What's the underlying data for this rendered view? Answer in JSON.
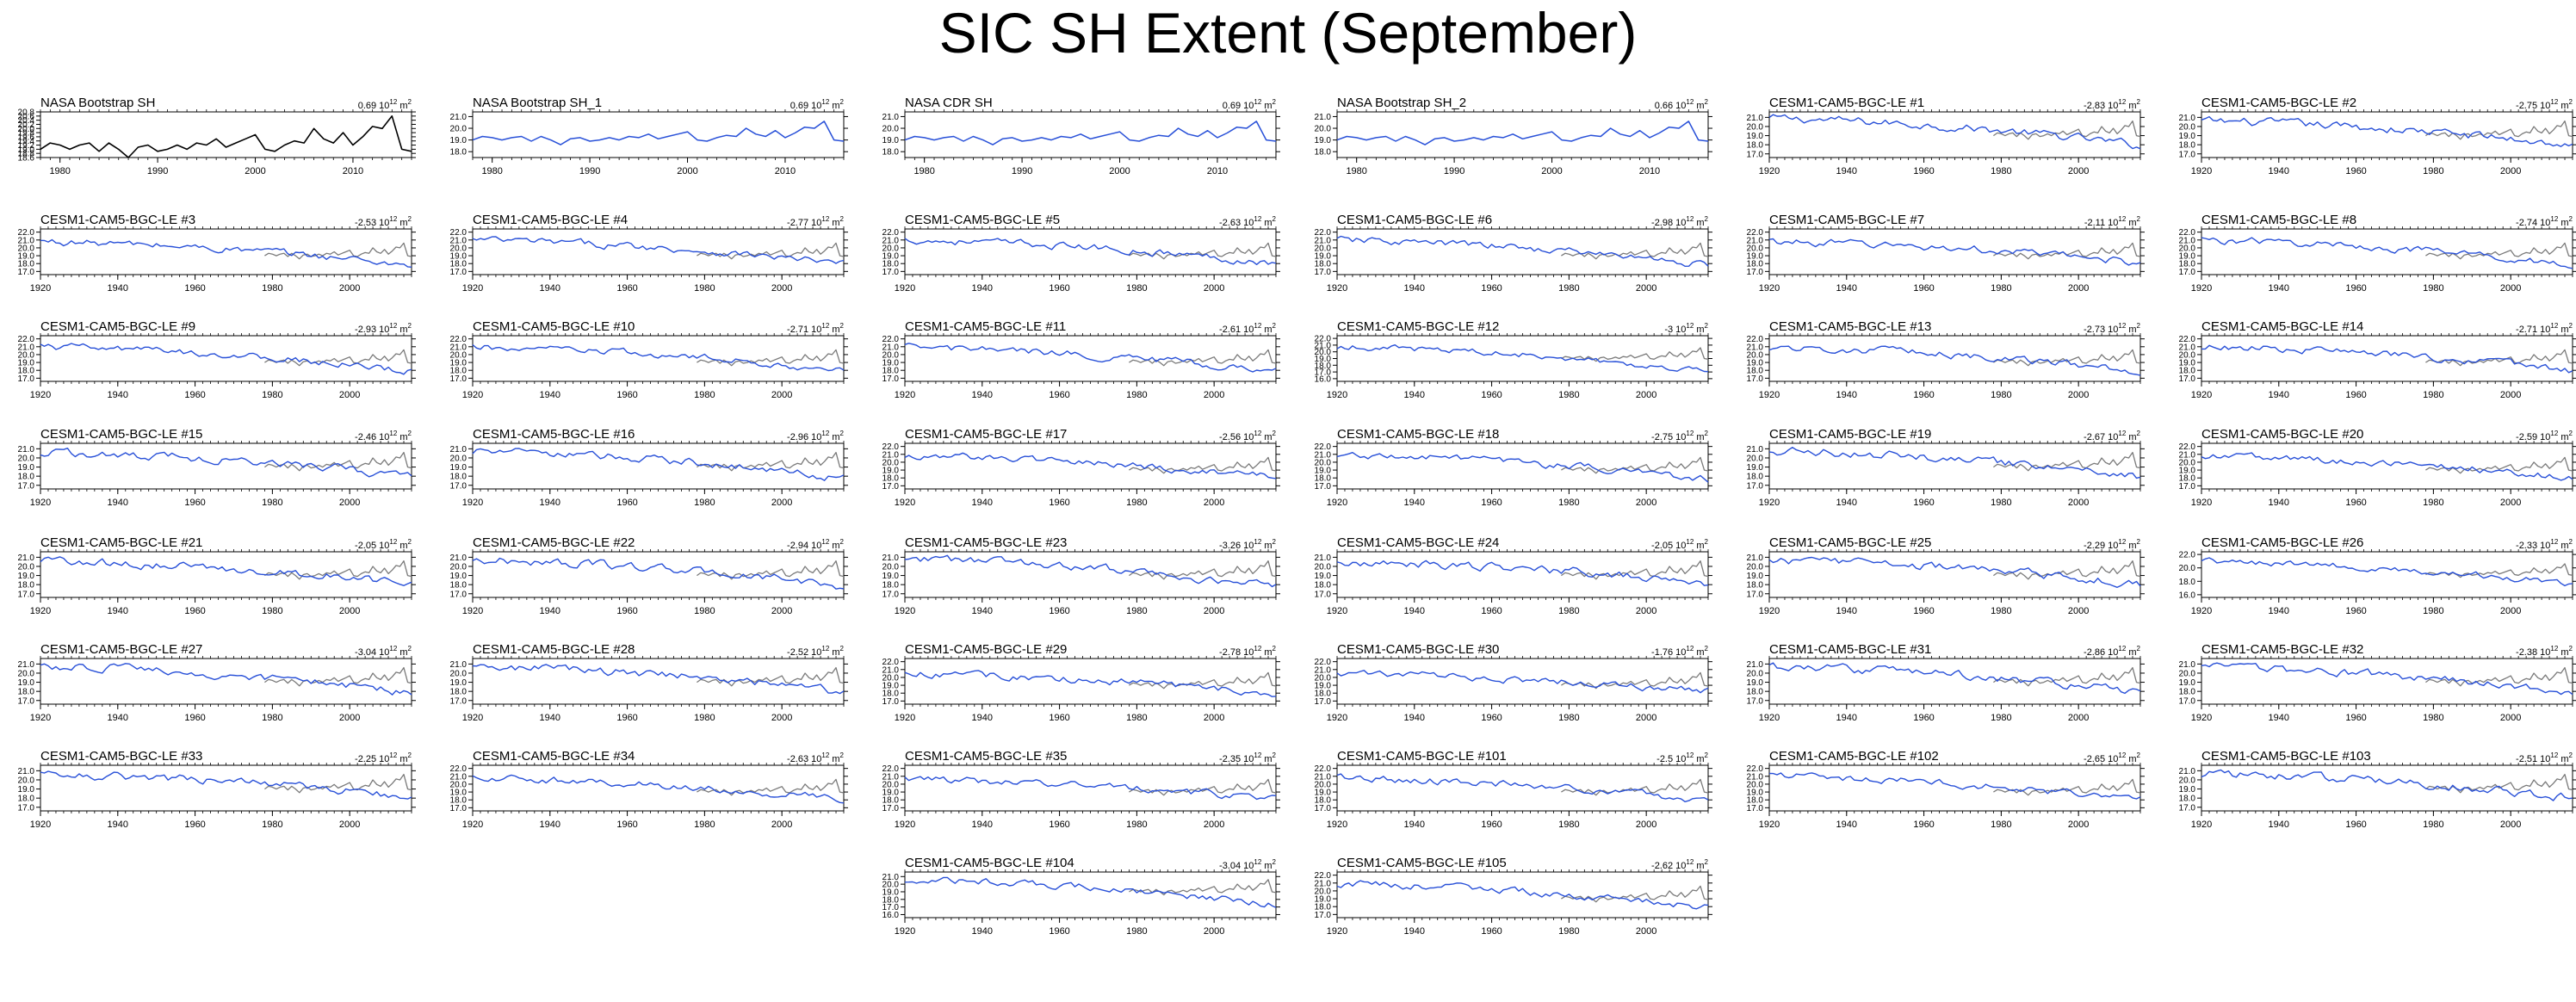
{
  "title": "SIC SH Extent (September)",
  "colors": {
    "obs": "#000000",
    "model": "#2850d8",
    "obs_overlay": "#7a7a7a"
  },
  "chart_data": {
    "type": "line",
    "units_label": "10",
    "units_exp": "12",
    "units_suffix": "m",
    "units_suffix_exp": "2",
    "observations": [
      {
        "name": "NASA Bootstrap SH",
        "trend": "0.69",
        "x_range": [
          1978,
          2016
        ],
        "xticks": [
          "1980",
          "1990",
          "2000",
          "2010"
        ],
        "ylim": [
          18.6,
          20.8
        ],
        "yticks": [
          "18.6",
          "18.8",
          "19.0",
          "19.2",
          "19.4",
          "19.6",
          "19.8",
          "20.0",
          "20.2",
          "20.4",
          "20.6",
          "20.8"
        ],
        "color": "#000000",
        "values": [
          19.0,
          19.3,
          19.2,
          19.0,
          19.2,
          19.3,
          18.9,
          19.3,
          19.0,
          18.6,
          19.1,
          19.2,
          18.9,
          19.0,
          19.2,
          19.0,
          19.3,
          19.2,
          19.5,
          19.1,
          19.3,
          19.5,
          19.7,
          19.0,
          18.9,
          19.2,
          19.4,
          19.3,
          20.0,
          19.5,
          19.3,
          19.8,
          19.2,
          19.6,
          20.1,
          20.0,
          20.6,
          19.0,
          18.9
        ]
      },
      {
        "name": "NASA Bootstrap SH_1",
        "trend": "0.69",
        "x_range": [
          1978,
          2016
        ],
        "xticks": [
          "1980",
          "1990",
          "2000",
          "2010"
        ],
        "ylim": [
          17.5,
          21.4
        ],
        "yticks": [
          "18.0",
          "19.0",
          "20.0",
          "21.0"
        ],
        "color": "#2850d8",
        "values": [
          19.0,
          19.3,
          19.2,
          19.0,
          19.2,
          19.3,
          18.9,
          19.3,
          19.0,
          18.6,
          19.1,
          19.2,
          18.9,
          19.0,
          19.2,
          19.0,
          19.3,
          19.2,
          19.5,
          19.1,
          19.3,
          19.5,
          19.7,
          19.0,
          18.9,
          19.2,
          19.4,
          19.3,
          20.0,
          19.5,
          19.3,
          19.8,
          19.2,
          19.6,
          20.1,
          20.0,
          20.6,
          19.0,
          18.9
        ]
      },
      {
        "name": "NASA CDR SH",
        "trend": "0.69",
        "x_range": [
          1978,
          2016
        ],
        "xticks": [
          "1980",
          "1990",
          "2000",
          "2010"
        ],
        "ylim": [
          17.5,
          21.4
        ],
        "yticks": [
          "18.0",
          "19.0",
          "20.0",
          "21.0"
        ],
        "color": "#2850d8",
        "values": [
          19.0,
          19.3,
          19.2,
          19.0,
          19.2,
          19.3,
          18.9,
          19.3,
          19.0,
          18.6,
          19.1,
          19.2,
          18.9,
          19.0,
          19.2,
          19.0,
          19.3,
          19.2,
          19.5,
          19.1,
          19.3,
          19.5,
          19.7,
          19.0,
          18.9,
          19.2,
          19.4,
          19.3,
          20.0,
          19.5,
          19.3,
          19.8,
          19.2,
          19.6,
          20.1,
          20.0,
          20.6,
          19.0,
          18.9
        ]
      },
      {
        "name": "NASA Bootstrap SH_2",
        "trend": "0.66",
        "x_range": [
          1978,
          2016
        ],
        "xticks": [
          "1980",
          "1990",
          "2000",
          "2010"
        ],
        "ylim": [
          17.5,
          21.4
        ],
        "yticks": [
          "18.0",
          "19.0",
          "20.0",
          "21.0"
        ],
        "color": "#2850d8",
        "values": [
          19.0,
          19.3,
          19.2,
          19.0,
          19.2,
          19.3,
          18.9,
          19.3,
          19.0,
          18.6,
          19.1,
          19.2,
          18.9,
          19.0,
          19.2,
          19.0,
          19.3,
          19.2,
          19.5,
          19.1,
          19.3,
          19.5,
          19.7,
          19.0,
          18.9,
          19.2,
          19.4,
          19.3,
          20.0,
          19.5,
          19.3,
          19.8,
          19.2,
          19.6,
          20.1,
          20.0,
          20.6,
          19.0,
          18.9
        ]
      }
    ],
    "model_x_range": [
      1920,
      2016
    ],
    "model_xticks": [
      "1920",
      "1940",
      "1960",
      "1980",
      "2000"
    ],
    "members": [
      {
        "name": "CESM1-CAM5-BGC-LE #1",
        "trend": "-2.83",
        "ylim": [
          16.6,
          21.6
        ],
        "yticks": [
          "17.0",
          "18.0",
          "19.0",
          "20.0",
          "21.0"
        ],
        "start": 20.9,
        "end": 17.9
      },
      {
        "name": "CESM1-CAM5-BGC-LE #2",
        "trend": "-2.75",
        "ylim": [
          16.6,
          21.6
        ],
        "yticks": [
          "17.0",
          "18.0",
          "19.0",
          "20.0",
          "21.0"
        ],
        "start": 20.6,
        "end": 17.9
      },
      {
        "name": "CESM1-CAM5-BGC-LE #3",
        "trend": "-2.53",
        "ylim": [
          16.6,
          22.4
        ],
        "yticks": [
          "17.0",
          "18.0",
          "19.0",
          "20.0",
          "21.0",
          "22.0"
        ],
        "start": 20.8,
        "end": 17.8
      },
      {
        "name": "CESM1-CAM5-BGC-LE #4",
        "trend": "-2.77",
        "ylim": [
          16.6,
          22.4
        ],
        "yticks": [
          "17.0",
          "18.0",
          "19.0",
          "20.0",
          "21.0",
          "22.0"
        ],
        "start": 21.0,
        "end": 17.9
      },
      {
        "name": "CESM1-CAM5-BGC-LE #5",
        "trend": "-2.63",
        "ylim": [
          16.6,
          22.4
        ],
        "yticks": [
          "17.0",
          "18.0",
          "19.0",
          "20.0",
          "21.0",
          "22.0"
        ],
        "start": 21.0,
        "end": 18.0
      },
      {
        "name": "CESM1-CAM5-BGC-LE #6",
        "trend": "-2.98",
        "ylim": [
          16.6,
          22.4
        ],
        "yticks": [
          "17.0",
          "18.0",
          "19.0",
          "20.0",
          "21.0",
          "22.0"
        ],
        "start": 21.0,
        "end": 17.8
      },
      {
        "name": "CESM1-CAM5-BGC-LE #7",
        "trend": "-2.11",
        "ylim": [
          16.6,
          22.4
        ],
        "yticks": [
          "17.0",
          "18.0",
          "19.0",
          "20.0",
          "21.0",
          "22.0"
        ],
        "start": 20.8,
        "end": 18.1
      },
      {
        "name": "CESM1-CAM5-BGC-LE #8",
        "trend": "-2.74",
        "ylim": [
          16.6,
          22.4
        ],
        "yticks": [
          "17.0",
          "18.0",
          "19.0",
          "20.0",
          "21.0",
          "22.0"
        ],
        "start": 21.0,
        "end": 17.8
      },
      {
        "name": "CESM1-CAM5-BGC-LE #9",
        "trend": "-2.93",
        "ylim": [
          16.6,
          22.4
        ],
        "yticks": [
          "17.0",
          "18.0",
          "19.0",
          "20.0",
          "21.0",
          "22.0"
        ],
        "start": 21.0,
        "end": 17.8
      },
      {
        "name": "CESM1-CAM5-BGC-LE #10",
        "trend": "-2.71",
        "ylim": [
          16.6,
          22.4
        ],
        "yticks": [
          "17.0",
          "18.0",
          "19.0",
          "20.0",
          "21.0",
          "22.0"
        ],
        "start": 20.9,
        "end": 17.9
      },
      {
        "name": "CESM1-CAM5-BGC-LE #11",
        "trend": "-2.61",
        "ylim": [
          16.6,
          22.4
        ],
        "yticks": [
          "17.0",
          "18.0",
          "19.0",
          "20.0",
          "21.0",
          "22.0"
        ],
        "start": 20.9,
        "end": 17.8
      },
      {
        "name": "CESM1-CAM5-BGC-LE #12",
        "trend": "-3",
        "ylim": [
          15.6,
          22.4
        ],
        "yticks": [
          "16.0",
          "17.0",
          "18.0",
          "19.0",
          "20.0",
          "21.0",
          "22.0"
        ],
        "start": 20.8,
        "end": 17.0
      },
      {
        "name": "CESM1-CAM5-BGC-LE #13",
        "trend": "-2.73",
        "ylim": [
          16.6,
          22.4
        ],
        "yticks": [
          "17.0",
          "18.0",
          "19.0",
          "20.0",
          "21.0",
          "22.0"
        ],
        "start": 20.9,
        "end": 17.9
      },
      {
        "name": "CESM1-CAM5-BGC-LE #14",
        "trend": "-2.71",
        "ylim": [
          16.6,
          22.4
        ],
        "yticks": [
          "17.0",
          "18.0",
          "19.0",
          "20.0",
          "21.0",
          "22.0"
        ],
        "start": 21.0,
        "end": 17.9
      },
      {
        "name": "CESM1-CAM5-BGC-LE #15",
        "trend": "-2.46",
        "ylim": [
          16.6,
          21.6
        ],
        "yticks": [
          "17.0",
          "18.0",
          "19.0",
          "20.0",
          "21.0"
        ],
        "start": 20.6,
        "end": 18.0
      },
      {
        "name": "CESM1-CAM5-BGC-LE #16",
        "trend": "-2.96",
        "ylim": [
          16.6,
          21.6
        ],
        "yticks": [
          "17.0",
          "18.0",
          "19.0",
          "20.0",
          "21.0"
        ],
        "start": 20.7,
        "end": 17.8
      },
      {
        "name": "CESM1-CAM5-BGC-LE #17",
        "trend": "-2.56",
        "ylim": [
          16.6,
          22.4
        ],
        "yticks": [
          "17.0",
          "18.0",
          "19.0",
          "20.0",
          "21.0",
          "22.0"
        ],
        "start": 20.8,
        "end": 18.0
      },
      {
        "name": "CESM1-CAM5-BGC-LE #18",
        "trend": "-2.75",
        "ylim": [
          16.6,
          22.4
        ],
        "yticks": [
          "17.0",
          "18.0",
          "19.0",
          "20.0",
          "21.0",
          "22.0"
        ],
        "start": 20.9,
        "end": 17.8
      },
      {
        "name": "CESM1-CAM5-BGC-LE #19",
        "trend": "-2.67",
        "ylim": [
          16.6,
          21.6
        ],
        "yticks": [
          "17.0",
          "18.0",
          "19.0",
          "20.0",
          "21.0"
        ],
        "start": 20.8,
        "end": 17.9
      },
      {
        "name": "CESM1-CAM5-BGC-LE #20",
        "trend": "-2.59",
        "ylim": [
          16.6,
          22.4
        ],
        "yticks": [
          "17.0",
          "18.0",
          "19.0",
          "20.0",
          "21.0",
          "22.0"
        ],
        "start": 20.8,
        "end": 18.0
      },
      {
        "name": "CESM1-CAM5-BGC-LE #21",
        "trend": "-2.05",
        "ylim": [
          16.6,
          21.6
        ],
        "yticks": [
          "17.0",
          "18.0",
          "19.0",
          "20.0",
          "21.0"
        ],
        "start": 20.6,
        "end": 18.1
      },
      {
        "name": "CESM1-CAM5-BGC-LE #22",
        "trend": "-2.94",
        "ylim": [
          16.6,
          21.6
        ],
        "yticks": [
          "17.0",
          "18.0",
          "19.0",
          "20.0",
          "21.0"
        ],
        "start": 20.7,
        "end": 17.8
      },
      {
        "name": "CESM1-CAM5-BGC-LE #23",
        "trend": "-3.26",
        "ylim": [
          16.6,
          21.6
        ],
        "yticks": [
          "17.0",
          "18.0",
          "19.0",
          "20.0",
          "21.0"
        ],
        "start": 20.8,
        "end": 17.7
      },
      {
        "name": "CESM1-CAM5-BGC-LE #24",
        "trend": "-2.05",
        "ylim": [
          16.6,
          21.6
        ],
        "yticks": [
          "17.0",
          "18.0",
          "19.0",
          "20.0",
          "21.0"
        ],
        "start": 20.5,
        "end": 18.1
      },
      {
        "name": "CESM1-CAM5-BGC-LE #25",
        "trend": "-2.29",
        "ylim": [
          16.6,
          21.6
        ],
        "yticks": [
          "17.0",
          "18.0",
          "19.0",
          "20.0",
          "21.0"
        ],
        "start": 20.7,
        "end": 18.0
      },
      {
        "name": "CESM1-CAM5-BGC-LE #26",
        "trend": "-2.33",
        "ylim": [
          15.6,
          22.4
        ],
        "yticks": [
          "16.0",
          "18.0",
          "20.0",
          "22.0"
        ],
        "start": 21.0,
        "end": 17.6
      },
      {
        "name": "CESM1-CAM5-BGC-LE #27",
        "trend": "-3.04",
        "ylim": [
          16.6,
          21.6
        ],
        "yticks": [
          "17.0",
          "18.0",
          "19.0",
          "20.0",
          "21.0"
        ],
        "start": 20.8,
        "end": 17.8
      },
      {
        "name": "CESM1-CAM5-BGC-LE #28",
        "trend": "-2.52",
        "ylim": [
          16.6,
          21.6
        ],
        "yticks": [
          "17.0",
          "18.0",
          "19.0",
          "20.0",
          "21.0"
        ],
        "start": 20.7,
        "end": 17.9
      },
      {
        "name": "CESM1-CAM5-BGC-LE #29",
        "trend": "-2.78",
        "ylim": [
          16.6,
          22.4
        ],
        "yticks": [
          "17.0",
          "18.0",
          "19.0",
          "20.0",
          "21.0",
          "22.0"
        ],
        "start": 20.5,
        "end": 17.9
      },
      {
        "name": "CESM1-CAM5-BGC-LE #30",
        "trend": "-1.76",
        "ylim": [
          16.6,
          22.4
        ],
        "yticks": [
          "17.0",
          "18.0",
          "19.0",
          "20.0",
          "21.0",
          "22.0"
        ],
        "start": 20.4,
        "end": 18.2
      },
      {
        "name": "CESM1-CAM5-BGC-LE #31",
        "trend": "-2.86",
        "ylim": [
          16.6,
          21.6
        ],
        "yticks": [
          "17.0",
          "18.0",
          "19.0",
          "20.0",
          "21.0"
        ],
        "start": 20.7,
        "end": 17.8
      },
      {
        "name": "CESM1-CAM5-BGC-LE #32",
        "trend": "-2.38",
        "ylim": [
          16.6,
          21.6
        ],
        "yticks": [
          "17.0",
          "18.0",
          "19.0",
          "20.0",
          "21.0"
        ],
        "start": 20.6,
        "end": 18.0
      },
      {
        "name": "CESM1-CAM5-BGC-LE #33",
        "trend": "-2.25",
        "ylim": [
          16.6,
          21.6
        ],
        "yticks": [
          "17.0",
          "18.0",
          "19.0",
          "20.0",
          "21.0"
        ],
        "start": 20.6,
        "end": 18.1
      },
      {
        "name": "CESM1-CAM5-BGC-LE #34",
        "trend": "-2.63",
        "ylim": [
          16.6,
          22.4
        ],
        "yticks": [
          "17.0",
          "18.0",
          "19.0",
          "20.0",
          "21.0",
          "22.0"
        ],
        "start": 20.8,
        "end": 18.0
      },
      {
        "name": "CESM1-CAM5-BGC-LE #35",
        "trend": "-2.35",
        "ylim": [
          16.6,
          22.4
        ],
        "yticks": [
          "17.0",
          "18.0",
          "19.0",
          "20.0",
          "21.0",
          "22.0"
        ],
        "start": 20.6,
        "end": 18.0
      },
      {
        "name": "CESM1-CAM5-BGC-LE #101",
        "trend": "-2.5",
        "ylim": [
          16.6,
          22.4
        ],
        "yticks": [
          "17.0",
          "18.0",
          "19.0",
          "20.0",
          "21.0",
          "22.0"
        ],
        "start": 20.8,
        "end": 17.9
      },
      {
        "name": "CESM1-CAM5-BGC-LE #102",
        "trend": "-2.65",
        "ylim": [
          16.6,
          22.4
        ],
        "yticks": [
          "17.0",
          "18.0",
          "19.0",
          "20.0",
          "21.0",
          "22.0"
        ],
        "start": 21.0,
        "end": 17.9
      },
      {
        "name": "CESM1-CAM5-BGC-LE #103",
        "trend": "-2.51",
        "ylim": [
          16.6,
          21.6
        ],
        "yticks": [
          "17.0",
          "18.0",
          "19.0",
          "20.0",
          "21.0"
        ],
        "start": 20.7,
        "end": 18.0
      },
      {
        "name": "CESM1-CAM5-BGC-LE #104",
        "trend": "-3.04",
        "ylim": [
          15.6,
          21.6
        ],
        "yticks": [
          "16.0",
          "17.0",
          "18.0",
          "19.0",
          "20.0",
          "21.0"
        ],
        "start": 20.6,
        "end": 17.3
      },
      {
        "name": "CESM1-CAM5-BGC-LE #105",
        "trend": "-2.62",
        "ylim": [
          16.6,
          22.4
        ],
        "yticks": [
          "17.0",
          "18.0",
          "19.0",
          "20.0",
          "21.0",
          "22.0"
        ],
        "start": 20.9,
        "end": 17.8
      }
    ]
  }
}
